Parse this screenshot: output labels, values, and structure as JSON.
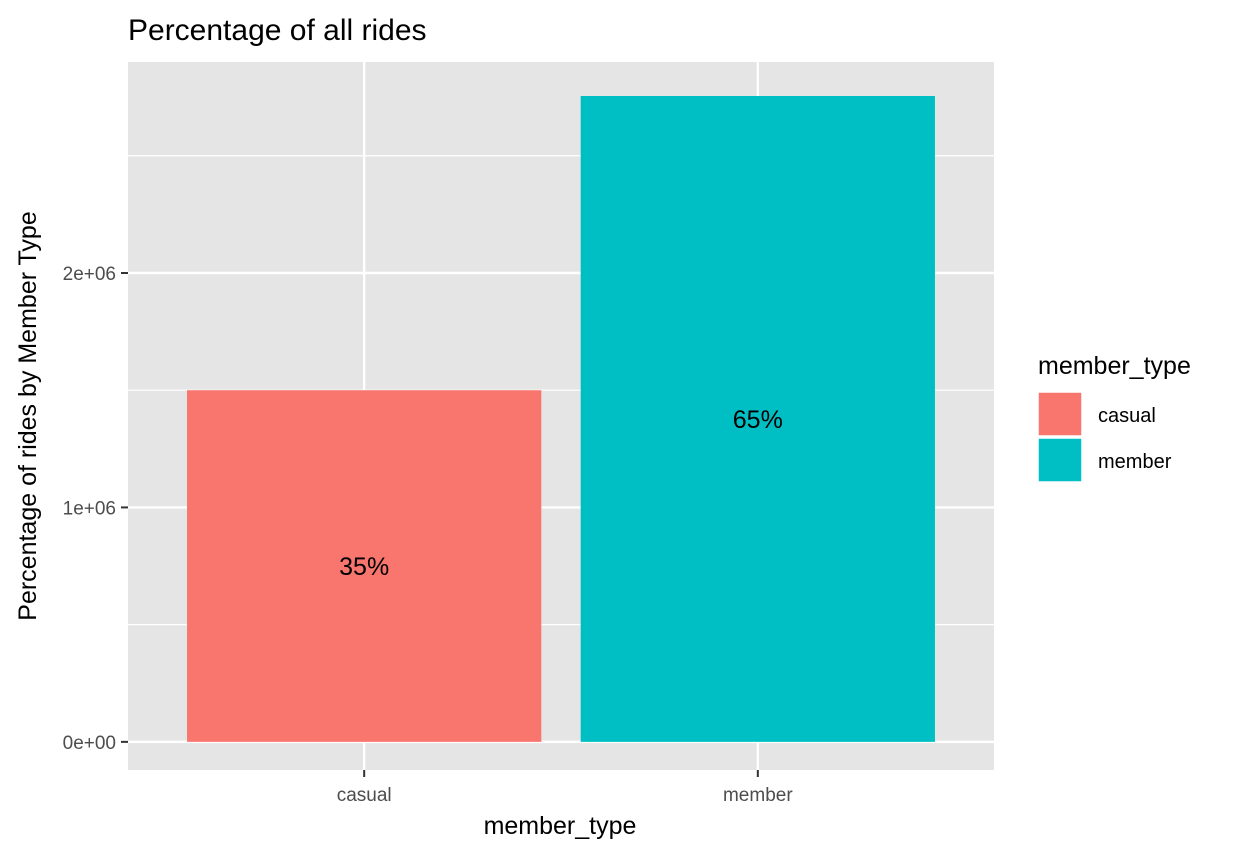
{
  "chart_data": {
    "type": "bar",
    "title": "Percentage of all rides",
    "xlabel": "member_type",
    "ylabel": "Percentage of rides by Member Type",
    "categories": [
      "casual",
      "member"
    ],
    "values": [
      1500000,
      2755000
    ],
    "bar_labels": [
      "35%",
      "65%"
    ],
    "ylim": [
      -120000,
      2900000
    ],
    "yticks": [
      0,
      1000000,
      2000000
    ],
    "ytick_labels": [
      "0e+00",
      "1e+06",
      "2e+06"
    ],
    "grid": true,
    "legend": {
      "title": "member_type",
      "placement": "right",
      "entries": [
        "casual",
        "member"
      ]
    },
    "colors": {
      "casual": "#F8766D",
      "member": "#00BFC4",
      "panel": "#E5E5E5",
      "grid": "#FFFFFF"
    }
  }
}
